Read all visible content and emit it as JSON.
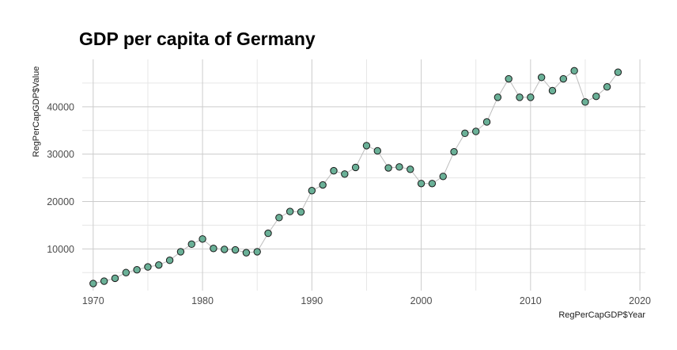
{
  "chart_data": {
    "type": "scatter",
    "title": "GDP per capita of Germany",
    "xlabel": "RegPerCapGDP$Year",
    "ylabel": "RegPerCapGDP$Value",
    "xlim": [
      1969,
      2020.5
    ],
    "ylim": [
      1200,
      50000
    ],
    "x_ticks": [
      1970,
      1980,
      1990,
      2000,
      2010,
      2020
    ],
    "y_ticks": [
      10000,
      20000,
      30000,
      40000
    ],
    "x_tick_labels": [
      "1970",
      "1980",
      "1990",
      "2000",
      "2010",
      "2020"
    ],
    "y_tick_labels": [
      "10000",
      "20000",
      "30000",
      "40000"
    ],
    "grid": true,
    "connect_points": true,
    "colors": {
      "point_fill": "#6ab097",
      "point_stroke": "#1a1a1a",
      "line": "#bdbdbd",
      "grid_major": "#cccccc",
      "grid_minor": "#e6e6e6"
    },
    "x": [
      1970,
      1971,
      1972,
      1973,
      1974,
      1975,
      1976,
      1977,
      1978,
      1979,
      1980,
      1981,
      1982,
      1983,
      1984,
      1985,
      1986,
      1987,
      1988,
      1989,
      1990,
      1991,
      1992,
      1993,
      1994,
      1995,
      1996,
      1997,
      1998,
      1999,
      2000,
      2001,
      2002,
      2003,
      2004,
      2005,
      2006,
      2007,
      2008,
      2009,
      2010,
      2011,
      2012,
      2013,
      2014,
      2015,
      2016,
      2017,
      2018
    ],
    "y": [
      2700,
      3200,
      3800,
      5000,
      5600,
      6200,
      6600,
      7600,
      9400,
      11000,
      12100,
      10100,
      9900,
      9800,
      9200,
      9400,
      13300,
      16600,
      17900,
      17800,
      22300,
      23500,
      26500,
      25800,
      27200,
      31800,
      30700,
      27100,
      27300,
      26800,
      23800,
      23800,
      25300,
      30500,
      34400,
      34800,
      36800,
      42000,
      45900,
      42000,
      42000,
      46200,
      43400,
      45900,
      47600,
      41000,
      42200,
      44200,
      47300
    ]
  }
}
